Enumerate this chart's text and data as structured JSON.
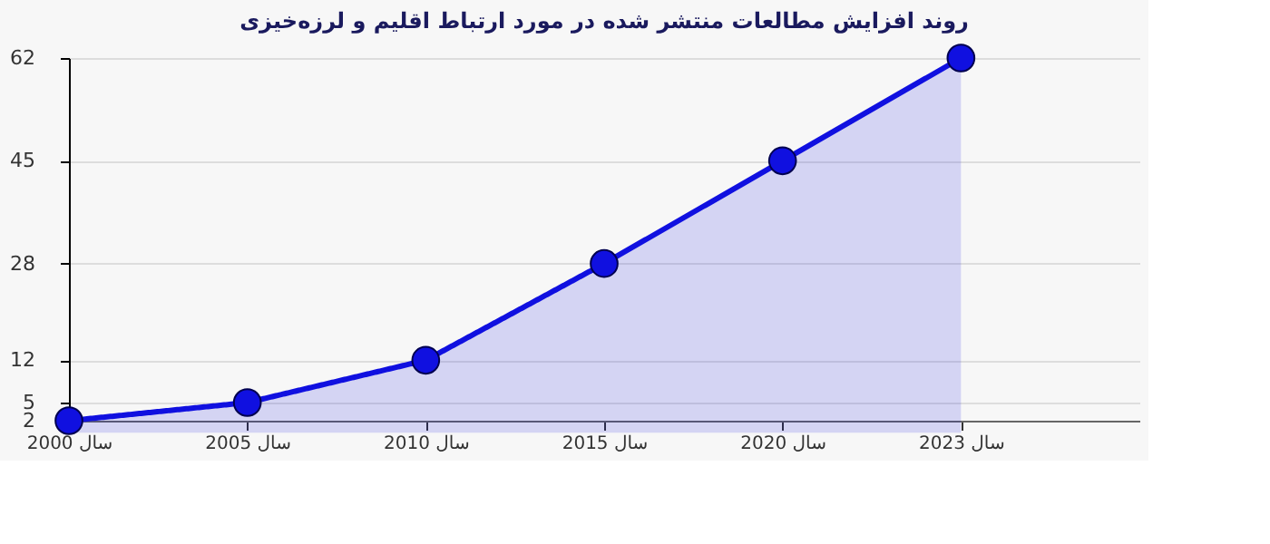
{
  "chart_data": {
    "type": "area",
    "title": "روند افزایش مطالعات منتشر شده در مورد ارتباط اقلیم و لرزه‌خیزی",
    "categories": [
      "سال 2000",
      "سال 2005",
      "سال 2010",
      "سال 2015",
      "سال 2020",
      "سال 2023"
    ],
    "series": [
      {
        "color": "#1010e0",
        "values": [
          2,
          5,
          12,
          28,
          45,
          62
        ]
      }
    ],
    "ylim": [
      2,
      62
    ],
    "yticks": [
      2,
      5,
      12,
      28,
      45,
      62
    ],
    "grid": "y",
    "marker": "circle",
    "line_style": "solid"
  }
}
